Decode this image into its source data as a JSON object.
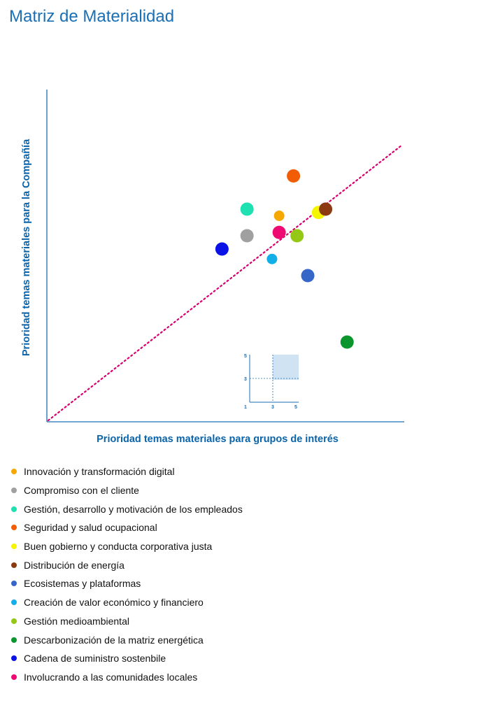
{
  "page": {
    "title": "Matriz de Materialidad"
  },
  "chart_data": {
    "type": "scatter",
    "xlabel": "Prioridad temas materiales para grupos de interés",
    "ylabel": "Prioridad temas materiales para la Compañía",
    "xlim": [
      0,
      5
    ],
    "ylim": [
      0,
      5
    ],
    "diagonal_reference_line": true,
    "diagonal_color": "#d6006e",
    "grid": false,
    "legend_position": "bottom",
    "points": [
      {
        "name": "Innovación y transformación digital",
        "x": 3.25,
        "y": 3.1,
        "color": "#f5a800",
        "size": "small"
      },
      {
        "name": "Compromiso con el cliente",
        "x": 2.8,
        "y": 2.8,
        "color": "#a0a0a0",
        "size": "large"
      },
      {
        "name": "Gestión, desarrollo y motivación de los empleados",
        "x": 2.8,
        "y": 3.2,
        "color": "#1ee0b0",
        "size": "large"
      },
      {
        "name": "Seguridad y salud ocupacional",
        "x": 3.45,
        "y": 3.7,
        "color": "#f25c05",
        "size": "large"
      },
      {
        "name": "Buen gobierno y conducta corporativa justa",
        "x": 3.8,
        "y": 3.15,
        "color": "#f5f500",
        "size": "large"
      },
      {
        "name": "Distribución de energía",
        "x": 3.9,
        "y": 3.2,
        "color": "#8b3a12",
        "size": "large"
      },
      {
        "name": "Ecosistemas y plataformas",
        "x": 3.65,
        "y": 2.2,
        "color": "#3566c8",
        "size": "large"
      },
      {
        "name": "Creación de valor económico y financiero",
        "x": 3.15,
        "y": 2.45,
        "color": "#12aee8",
        "size": "small"
      },
      {
        "name": "Gestión medioambiental",
        "x": 3.5,
        "y": 2.8,
        "color": "#95c814",
        "size": "large"
      },
      {
        "name": "Descarbonización de la matriz energética",
        "x": 4.2,
        "y": 1.2,
        "color": "#0a962c",
        "size": "large"
      },
      {
        "name": "Cadena de suministro sostenbile",
        "x": 2.45,
        "y": 2.6,
        "color": "#0a12e6",
        "size": "large"
      },
      {
        "name": "Involucrando a las comunidades locales",
        "x": 3.25,
        "y": 2.85,
        "color": "#ee0a72",
        "size": "large"
      }
    ],
    "inset": {
      "x_ticks": [
        "1",
        "3",
        "5"
      ],
      "y_ticks": [
        "3",
        "5"
      ],
      "highlight_quadrant": "top-right",
      "highlight_color": "#cfe3f3"
    }
  },
  "colors": {
    "title": "#1a6fb5",
    "axis": "#1a6fb5",
    "axis_label": "#0a64ab"
  }
}
